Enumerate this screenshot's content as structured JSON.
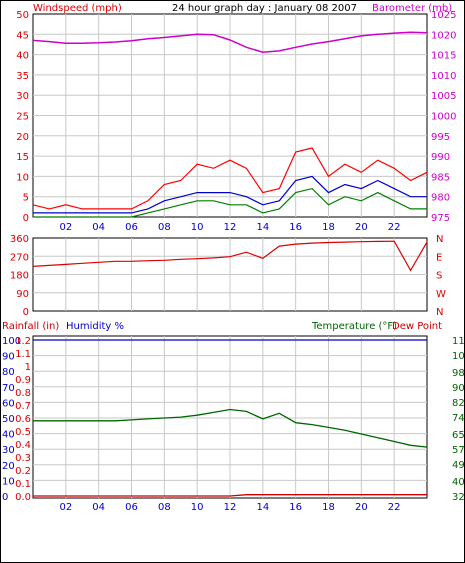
{
  "header": {
    "title": "24 hour graph day : January 08 2007",
    "left_label": "Windspeed (mph)",
    "right_label": "Barometer (mb)"
  },
  "colors": {
    "wind_max": "#ff0000",
    "wind_avg": "#0000cc",
    "wind_min": "#008000",
    "barometer": "#cc00cc",
    "direction": "#dd0000",
    "temperature": "#006600",
    "dew_point": "#cc0000",
    "rainfall": "#cc0000",
    "humidity": "#0000cc",
    "grid": "#c8c8c8",
    "frame": "#000000"
  },
  "chart_data": [
    {
      "type": "line",
      "panel": "wind-barometer",
      "ylabel_left": "Windspeed (mph)",
      "ylabel_right": "Barometer (mb)",
      "ylim": [
        0,
        50
      ],
      "ylim_right": [
        975,
        1025
      ],
      "yticks_left": [
        "0",
        "5",
        "10",
        "15",
        "20",
        "25",
        "30",
        "35",
        "40",
        "45",
        "50"
      ],
      "yticks_right": [
        "975",
        "980",
        "985",
        "990",
        "995",
        "1000",
        "1005",
        "1010",
        "1015",
        "1020",
        "1025"
      ],
      "xlim": [
        0,
        24
      ],
      "xticks": [
        "02",
        "04",
        "06",
        "08",
        "10",
        "12",
        "14",
        "16",
        "18",
        "20",
        "22"
      ],
      "x": [
        0,
        1,
        2,
        3,
        4,
        5,
        6,
        7,
        8,
        9,
        10,
        11,
        12,
        13,
        14,
        15,
        16,
        17,
        18,
        19,
        20,
        21,
        22,
        23,
        24
      ],
      "series": [
        {
          "key": "barometer",
          "axis": "right",
          "values": [
            1018.5,
            1018.2,
            1017.8,
            1017.8,
            1017.9,
            1018.1,
            1018.4,
            1018.9,
            1019.2,
            1019.6,
            1020.0,
            1019.9,
            1018.6,
            1016.8,
            1015.6,
            1015.9,
            1016.8,
            1017.6,
            1018.2,
            1018.9,
            1019.6,
            1020.0,
            1020.3,
            1020.5,
            1020.4
          ]
        },
        {
          "key": "wind_max",
          "axis": "left",
          "values": [
            3,
            2,
            3,
            2,
            2,
            2,
            2,
            4,
            8,
            9,
            13,
            12,
            14,
            12,
            6,
            7,
            16,
            17,
            10,
            13,
            11,
            14,
            12,
            9,
            11
          ]
        },
        {
          "key": "wind_avg",
          "axis": "left",
          "values": [
            1,
            1,
            1,
            1,
            1,
            1,
            1,
            2,
            4,
            5,
            6,
            6,
            6,
            5,
            3,
            4,
            9,
            10,
            6,
            8,
            7,
            9,
            7,
            5,
            5
          ]
        },
        {
          "key": "wind_min",
          "axis": "left",
          "values": [
            0,
            0,
            0,
            0,
            0,
            0,
            0,
            1,
            2,
            3,
            4,
            4,
            3,
            3,
            1,
            2,
            6,
            7,
            3,
            5,
            4,
            6,
            4,
            2,
            2
          ]
        }
      ]
    },
    {
      "type": "line",
      "panel": "wind-direction",
      "ylim": [
        0,
        360
      ],
      "yticks_left": [
        "0",
        "90",
        "180",
        "270",
        "360"
      ],
      "yticks_right": [
        "N",
        "E",
        "S",
        "W",
        "N"
      ],
      "xlim": [
        0,
        24
      ],
      "x": [
        0,
        1,
        2,
        3,
        4,
        5,
        6,
        7,
        8,
        9,
        10,
        11,
        12,
        13,
        14,
        15,
        16,
        17,
        18,
        19,
        20,
        21,
        22,
        23,
        24
      ],
      "series": [
        {
          "key": "direction",
          "values": [
            220,
            225,
            230,
            235,
            240,
            245,
            245,
            248,
            250,
            255,
            258,
            262,
            268,
            290,
            260,
            320,
            330,
            335,
            338,
            340,
            342,
            343,
            344,
            200,
            340
          ]
        }
      ]
    },
    {
      "type": "line",
      "panel": "temperature-humidity-rain",
      "left_label_rain": "Rainfall (in)",
      "left_label_humidity": "Humidity %",
      "right_label_temperature": "Temperature (°F)",
      "right_label_dew": "Dew Point",
      "yticks_humidity": [
        "0",
        "10",
        "20",
        "30",
        "40",
        "50",
        "60",
        "70",
        "80",
        "90",
        "100"
      ],
      "yticks_rain": [
        "0.0",
        "0.1",
        "0.2",
        "0.3",
        "0.4",
        "0.5",
        "0.6",
        "0.7",
        "0.8",
        "0.9",
        "1",
        "1.1",
        "1.2"
      ],
      "yticks_right": [
        "32",
        "40",
        "49",
        "57",
        "65",
        "74",
        "82",
        "90",
        "98",
        "107",
        "115"
      ],
      "ylim_humidity": [
        0,
        100
      ],
      "ylim_rain": [
        0,
        1.2
      ],
      "ylim_temperature": [
        32,
        115
      ],
      "xlim": [
        0,
        24
      ],
      "xticks": [
        "02",
        "04",
        "06",
        "08",
        "10",
        "12",
        "14",
        "16",
        "18",
        "20",
        "22"
      ],
      "x": [
        0,
        1,
        2,
        3,
        4,
        5,
        6,
        7,
        8,
        9,
        10,
        11,
        12,
        13,
        14,
        15,
        16,
        17,
        18,
        19,
        20,
        21,
        22,
        23,
        24
      ],
      "series": [
        {
          "key": "humidity",
          "axis": "humidity",
          "values": [
            100,
            100,
            100,
            100,
            100,
            100,
            100,
            100,
            100,
            100,
            100,
            100,
            100,
            100,
            100,
            100,
            100,
            100,
            100,
            100,
            100,
            100,
            100,
            100,
            100
          ]
        },
        {
          "key": "temperature",
          "axis": "temperature",
          "values": [
            72,
            72,
            72,
            72,
            72,
            72,
            72.5,
            73,
            73.5,
            74,
            75,
            76.5,
            78,
            77,
            73,
            76,
            71,
            70,
            68.5,
            67,
            65,
            63,
            61,
            59,
            58
          ]
        },
        {
          "key": "rainfall",
          "axis": "rain",
          "values": [
            0,
            0,
            0,
            0,
            0,
            0,
            0,
            0,
            0,
            0,
            0,
            0,
            0,
            0.01,
            0.01,
            0.01,
            0.01,
            0.01,
            0.01,
            0.01,
            0.01,
            0.01,
            0.01,
            0.01,
            0.01
          ]
        }
      ]
    }
  ]
}
